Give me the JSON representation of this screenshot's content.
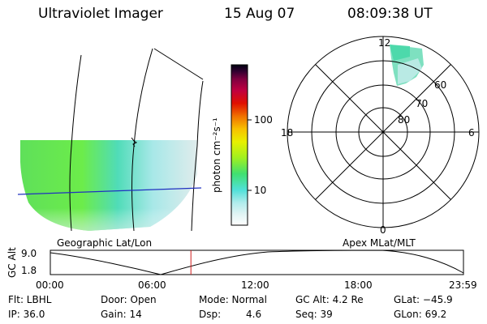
{
  "header": {
    "instrument": "Ultraviolet Imager",
    "date": "15 Aug 07",
    "time": "08:09:38 UT"
  },
  "colorbar": {
    "unit_label": "photon cm⁻²s⁻¹",
    "ticks": [
      "100",
      "10"
    ],
    "colors": [
      "#ffffff",
      "#e0f4f4",
      "#b0ecec",
      "#50e0d8",
      "#40e070",
      "#a0f020",
      "#e8f000",
      "#f8c000",
      "#f07000",
      "#e01000",
      "#c00040",
      "#800040",
      "#300030",
      "#000010"
    ]
  },
  "geo_panel": {
    "label": "Geographic Lat/Lon"
  },
  "polar_panel": {
    "label": "Apex MLat/MLT",
    "mlt_labels": {
      "top": "12",
      "bottom": "0",
      "left": "18",
      "right": "6"
    },
    "lat_labels": [
      "60",
      "70",
      "80"
    ]
  },
  "timeline": {
    "y_label": "GC Alt",
    "y_ticks": [
      "9.0",
      "1.8"
    ],
    "x_ticks": [
      "00:00",
      "06:00",
      "12:00",
      "18:00",
      "23:59"
    ],
    "current_time_fraction": 0.3403
  },
  "info": {
    "row1": {
      "flt": "Flt:  LBHL",
      "door": "Door: Open",
      "mode": "Mode: Normal",
      "gcalt": "GC Alt: 4.2 Re",
      "glat": "GLat: −45.9"
    },
    "row2": {
      "ip": "IP: 36.0",
      "gain": "Gain: 14",
      "dsp_label": "Dsp:",
      "dsp_value": "4.6",
      "seq": "Seq: 39",
      "glon": "GLon:  69.2"
    }
  }
}
